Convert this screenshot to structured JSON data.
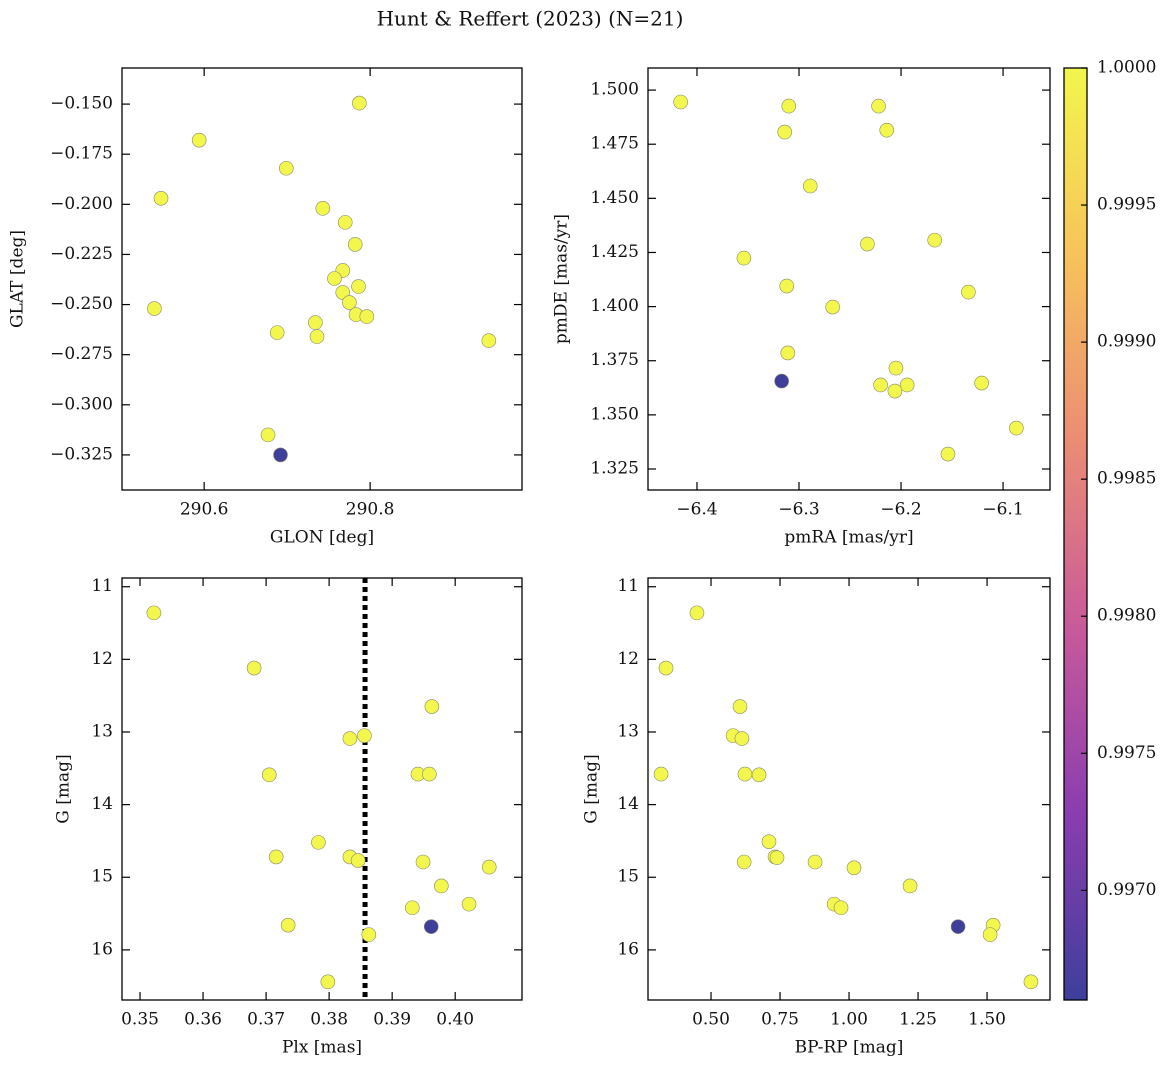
{
  "figure": {
    "title": "Hunt & Reffert (2023) (N=21)"
  },
  "colorbar": {
    "clim": [
      0.9966,
      1.0
    ],
    "colormap": [
      "#3e3f9b",
      "#8a3db0",
      "#c85a9a",
      "#eb8c74",
      "#f7c35a",
      "#f2f64d"
    ],
    "ticks": [
      {
        "value": 1.0,
        "label": "1.0000"
      },
      {
        "value": 0.9995,
        "label": "0.9995"
      },
      {
        "value": 0.999,
        "label": "0.9990"
      },
      {
        "value": 0.9985,
        "label": "0.9985"
      },
      {
        "value": 0.998,
        "label": "0.9980"
      },
      {
        "value": 0.9975,
        "label": "0.9975"
      },
      {
        "value": 0.997,
        "label": "0.9970"
      }
    ]
  },
  "chart_data": [
    {
      "type": "scatter",
      "xlabel": "GLON [deg]",
      "ylabel": "GLAT [deg]",
      "x": [
        290.787,
        290.594,
        290.699,
        290.548,
        290.743,
        290.77,
        290.782,
        290.767,
        290.757,
        290.786,
        290.767,
        290.775,
        290.54,
        290.783,
        290.796,
        290.734,
        290.688,
        290.736,
        290.943,
        290.677,
        290.692
      ],
      "y": [
        -0.1495,
        -0.168,
        -0.182,
        -0.197,
        -0.202,
        -0.209,
        -0.22,
        -0.233,
        -0.237,
        -0.241,
        -0.244,
        -0.249,
        -0.252,
        -0.255,
        -0.256,
        -0.259,
        -0.264,
        -0.266,
        -0.268,
        -0.315,
        -0.325
      ],
      "c": [
        1.0,
        1.0,
        1.0,
        1.0,
        1.0,
        1.0,
        1.0,
        1.0,
        1.0,
        1.0,
        1.0,
        1.0,
        1.0,
        1.0,
        1.0,
        1.0,
        1.0,
        1.0,
        1.0,
        1.0,
        0.9966
      ],
      "xlim": [
        290.501,
        290.983
      ],
      "ylim": [
        -0.3425,
        -0.132
      ],
      "xticks": [
        {
          "value": 290.6,
          "label": "290.6"
        },
        {
          "value": 290.8,
          "label": "290.8"
        }
      ],
      "yticks": [
        {
          "value": -0.15,
          "label": "−0.150"
        },
        {
          "value": -0.175,
          "label": "−0.175"
        },
        {
          "value": -0.2,
          "label": "−0.200"
        },
        {
          "value": -0.225,
          "label": "−0.225"
        },
        {
          "value": -0.25,
          "label": "−0.250"
        },
        {
          "value": -0.275,
          "label": "−0.275"
        },
        {
          "value": -0.3,
          "label": "−0.300"
        },
        {
          "value": -0.325,
          "label": "−0.325"
        }
      ]
    },
    {
      "type": "scatter",
      "xlabel": "pmRA [mas/yr]",
      "ylabel": "pmDE [mas/yr]",
      "x": [
        -6.416,
        -6.31,
        -6.222,
        -6.314,
        -6.214,
        -6.289,
        -6.167,
        -6.233,
        -6.354,
        -6.134,
        -6.312,
        -6.267,
        -6.311,
        -6.205,
        -6.317,
        -6.22,
        -6.194,
        -6.121,
        -6.206,
        -6.087,
        -6.154
      ],
      "y": [
        1.4945,
        1.4926,
        1.4926,
        1.4806,
        1.4815,
        1.4557,
        1.4307,
        1.4289,
        1.4224,
        1.4067,
        1.4095,
        1.3998,
        1.3786,
        1.3716,
        1.3656,
        1.3638,
        1.3638,
        1.3647,
        1.361,
        1.3439,
        1.3319
      ],
      "c": [
        1.0,
        1.0,
        1.0,
        1.0,
        1.0,
        1.0,
        1.0,
        1.0,
        1.0,
        1.0,
        1.0,
        1.0,
        1.0,
        1.0,
        0.9966,
        1.0,
        1.0,
        1.0,
        1.0,
        1.0,
        1.0
      ],
      "xlim": [
        -6.448,
        -6.054
      ],
      "ylim": [
        1.3153,
        1.5102
      ],
      "xticks": [
        {
          "value": -6.4,
          "label": "−6.4"
        },
        {
          "value": -6.3,
          "label": "−6.3"
        },
        {
          "value": -6.2,
          "label": "−6.2"
        },
        {
          "value": -6.1,
          "label": "−6.1"
        }
      ],
      "yticks": [
        {
          "value": 1.325,
          "label": "1.325"
        },
        {
          "value": 1.35,
          "label": "1.350"
        },
        {
          "value": 1.375,
          "label": "1.375"
        },
        {
          "value": 1.4,
          "label": "1.400"
        },
        {
          "value": 1.425,
          "label": "1.425"
        },
        {
          "value": 1.45,
          "label": "1.450"
        },
        {
          "value": 1.475,
          "label": "1.475"
        },
        {
          "value": 1.5,
          "label": "1.500"
        }
      ]
    },
    {
      "type": "scatter",
      "xlabel": "Plx [mas]",
      "ylabel": "G [mag]",
      "x": [
        0.3522,
        0.3681,
        0.3963,
        0.3833,
        0.3856,
        0.3705,
        0.3941,
        0.3959,
        0.3783,
        0.3716,
        0.3833,
        0.3846,
        0.3949,
        0.4054,
        0.3978,
        0.4022,
        0.3932,
        0.3735,
        0.3962,
        0.3863,
        0.3798
      ],
      "y": [
        11.36,
        12.12,
        12.65,
        13.09,
        13.05,
        13.59,
        13.58,
        13.58,
        14.52,
        14.72,
        14.72,
        14.77,
        14.79,
        14.86,
        15.12,
        15.37,
        15.42,
        15.66,
        15.68,
        15.79,
        16.44
      ],
      "c": [
        1.0,
        1.0,
        1.0,
        1.0,
        1.0,
        1.0,
        1.0,
        1.0,
        1.0,
        1.0,
        1.0,
        1.0,
        1.0,
        1.0,
        1.0,
        1.0,
        1.0,
        1.0,
        0.9966,
        1.0,
        1.0
      ],
      "vline": 0.3857,
      "xlim": [
        0.34714,
        0.4106
      ],
      "ylim": [
        16.69,
        10.88
      ],
      "xticks": [
        0.35,
        0.36,
        0.37,
        0.38,
        0.39,
        {
          "value": 0.4,
          "label": "0.40"
        }
      ],
      "yticks": [
        11,
        12,
        13,
        14,
        15,
        16
      ]
    },
    {
      "type": "scatter",
      "xlabel": "BP-RP [mag]",
      "ylabel": "G [mag]",
      "x": [
        0.449,
        0.337,
        0.605,
        0.58,
        0.612,
        0.319,
        0.623,
        0.674,
        0.71,
        0.732,
        0.739,
        0.62,
        0.877,
        1.018,
        1.221,
        0.946,
        0.971,
        1.395,
        1.522,
        1.511,
        1.659
      ],
      "y": [
        11.36,
        12.12,
        12.65,
        13.05,
        13.09,
        13.58,
        13.58,
        13.59,
        14.51,
        14.72,
        14.73,
        14.79,
        14.79,
        14.87,
        15.12,
        15.37,
        15.42,
        15.68,
        15.66,
        15.79,
        16.44
      ],
      "c": [
        1.0,
        1.0,
        1.0,
        1.0,
        1.0,
        1.0,
        1.0,
        1.0,
        1.0,
        1.0,
        1.0,
        1.0,
        1.0,
        1.0,
        1.0,
        1.0,
        1.0,
        0.9966,
        1.0,
        1.0,
        1.0
      ],
      "xlim": [
        0.2717,
        1.728
      ],
      "ylim": [
        16.69,
        10.88
      ],
      "xticks": [
        {
          "value": 0.5,
          "label": "0.50"
        },
        {
          "value": 0.75,
          "label": "0.75"
        },
        {
          "value": 1.0,
          "label": "1.00"
        },
        {
          "value": 1.25,
          "label": "1.25"
        },
        {
          "value": 1.5,
          "label": "1.50"
        }
      ],
      "yticks": [
        11,
        12,
        13,
        14,
        15,
        16
      ]
    }
  ]
}
